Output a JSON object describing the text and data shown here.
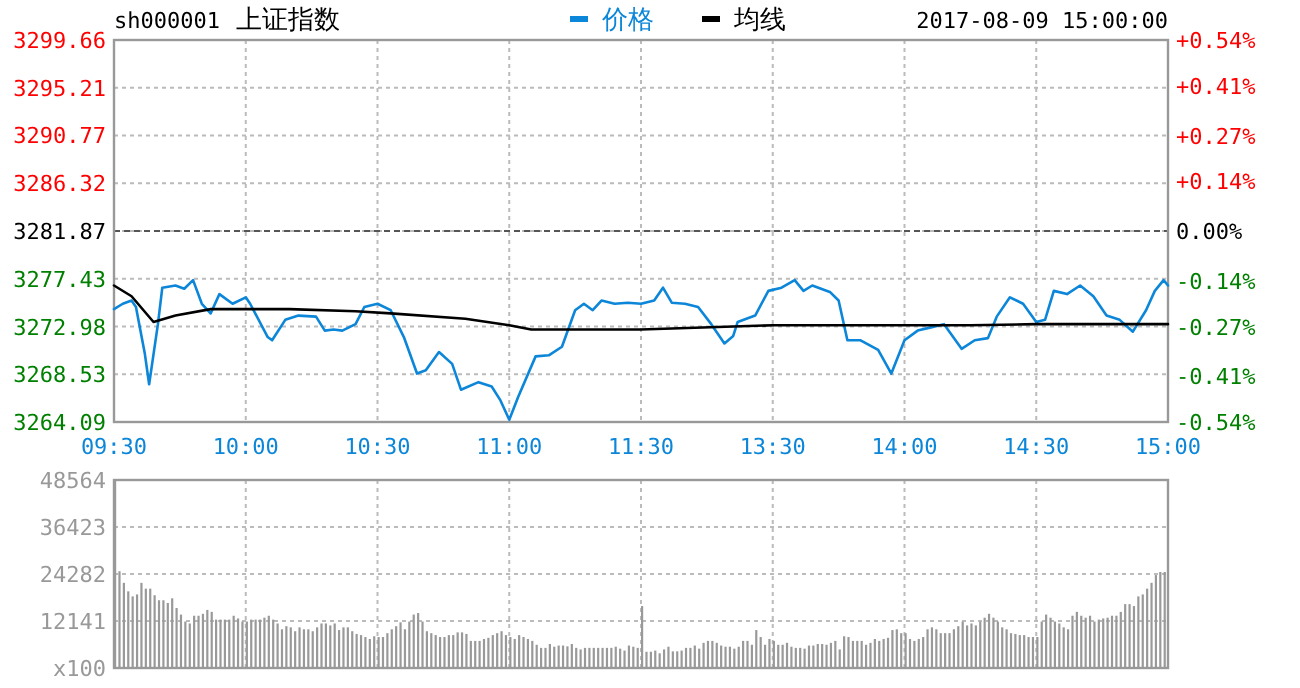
{
  "chart_data": [
    {
      "type": "line",
      "title": "上证指数",
      "annotations": [
        "sh000001",
        "2017-08-09 15:00:00"
      ],
      "legend": "top",
      "grid": true,
      "categories": [
        "09:30",
        null,
        null,
        null,
        null,
        null,
        null,
        null,
        null,
        null,
        null,
        null,
        null,
        null,
        null,
        null,
        null,
        null,
        null,
        null,
        null,
        null,
        null,
        null,
        null,
        null,
        null,
        null,
        null,
        null,
        "10:00",
        null,
        null,
        null,
        null,
        null,
        null,
        null,
        null,
        null,
        null,
        null,
        null,
        null,
        null,
        null,
        null,
        null,
        null,
        null,
        null,
        null,
        null,
        null,
        null,
        null,
        null,
        null,
        null,
        null,
        "10:30",
        null,
        null,
        null,
        null,
        null,
        null,
        null,
        null,
        null,
        null,
        null,
        null,
        null,
        null,
        null,
        null,
        null,
        null,
        null,
        null,
        null,
        null,
        null,
        null,
        null,
        null,
        null,
        null,
        null,
        "11:00",
        null,
        null,
        null,
        null,
        null,
        null,
        null,
        null,
        null,
        null,
        null,
        null,
        null,
        null,
        null,
        null,
        null,
        null,
        null,
        null,
        null,
        null,
        null,
        null,
        null,
        null,
        null,
        null,
        null,
        "11:30",
        null,
        null,
        null,
        null,
        null,
        null,
        null,
        null,
        null,
        null,
        null,
        null,
        null,
        null,
        null,
        null,
        null,
        null,
        null,
        null,
        null,
        null,
        null,
        null,
        null,
        null,
        null,
        null,
        null,
        "13:30",
        null,
        null,
        null,
        null,
        null,
        null,
        null,
        null,
        null,
        null,
        null,
        null,
        null,
        null,
        null,
        null,
        null,
        null,
        null,
        null,
        null,
        null,
        null,
        null,
        null,
        null,
        null,
        null,
        null,
        "14:00",
        null,
        null,
        null,
        null,
        null,
        null,
        null,
        null,
        null,
        null,
        null,
        null,
        null,
        null,
        null,
        null,
        null,
        null,
        null,
        null,
        null,
        null,
        null,
        null,
        null,
        null,
        null,
        null,
        null,
        "14:30",
        null,
        null,
        null,
        null,
        null,
        null,
        null,
        null,
        null,
        null,
        null,
        null,
        null,
        null,
        null,
        null,
        null,
        null,
        null,
        null,
        null,
        null,
        null,
        null,
        null,
        null,
        null,
        null,
        null,
        "15:00"
      ],
      "ylim": [
        3264.09,
        3299.66
      ],
      "yticks": [
        3264.09,
        3268.53,
        3272.98,
        3277.43,
        3281.87,
        3286.32,
        3290.77,
        3295.21,
        3299.66
      ],
      "y2lim": [
        -0.54,
        0.54
      ],
      "y2ticks": [
        {
          "value": -0.54,
          "label": "-0.54%"
        },
        {
          "value": -0.41,
          "label": "-0.41%"
        },
        {
          "value": -0.27,
          "label": "-0.27%"
        },
        {
          "value": -0.14,
          "label": "-0.14%"
        },
        {
          "value": 0,
          "label": "0.00%"
        },
        {
          "value": 0.14,
          "label": "+0.14%"
        },
        {
          "value": 0.27,
          "label": "+0.27%"
        },
        {
          "value": 0.41,
          "label": "+0.41%"
        },
        {
          "value": 0.54,
          "label": "+0.54%"
        }
      ],
      "ref_lines": [
        {
          "axis": "y",
          "value": 3281.87,
          "color": "#555555",
          "line_style": "dashed"
        }
      ],
      "series": [
        {
          "name": "价格",
          "color": "#0c86d8",
          "values": [
            3274.6,
            null,
            3275.1,
            null,
            3275.4,
            3274.8,
            null,
            3270.5,
            3267.6,
            null,
            3273.2,
            3276.6,
            null,
            null,
            3276.8,
            null,
            3276.5,
            null,
            3277.3,
            null,
            3275.1,
            null,
            3274.2,
            null,
            3276.0,
            null,
            null,
            3275.1,
            null,
            null,
            3275.7,
            3275.1,
            null,
            null,
            null,
            3272.0,
            3271.7,
            null,
            null,
            3273.6,
            null,
            null,
            3274.0,
            null,
            null,
            null,
            3273.9,
            null,
            3272.6,
            null,
            3272.7,
            null,
            3272.6,
            null,
            null,
            3273.2,
            null,
            3274.8,
            null,
            null,
            3275.1,
            null,
            null,
            3274.5,
            null,
            null,
            3272.0,
            null,
            null,
            3268.6,
            null,
            3268.9,
            null,
            null,
            3270.6,
            null,
            null,
            3269.5,
            null,
            3267.1,
            null,
            null,
            null,
            3267.8,
            null,
            null,
            3267.4,
            null,
            3266.1,
            null,
            3264.3,
            null,
            3266.4,
            null,
            null,
            null,
            3270.2,
            null,
            null,
            3270.3,
            null,
            null,
            3271.1,
            null,
            null,
            3274.5,
            null,
            3275.1,
            null,
            3274.5,
            null,
            3275.4,
            null,
            null,
            3275.1,
            null,
            null,
            3275.2,
            null,
            null,
            3275.1,
            null,
            null,
            3275.4,
            null,
            3276.6,
            null,
            3275.2,
            null,
            null,
            3275.1,
            null,
            null,
            3274.8,
            null,
            null,
            3273.2,
            null,
            null,
            3271.4,
            null,
            3272.1,
            3273.4,
            null,
            null,
            null,
            3274.0,
            null,
            null,
            3276.3,
            null,
            null,
            3276.6,
            null,
            null,
            3277.3,
            null,
            3276.3,
            null,
            3276.8,
            null,
            null,
            null,
            3276.2,
            null,
            3275.4,
            null,
            3271.7,
            null,
            null,
            3271.7,
            null,
            null,
            null,
            3270.8,
            null,
            null,
            3268.6,
            null,
            null,
            3271.7,
            null,
            null,
            3272.6,
            null,
            null,
            3272.9,
            null,
            null,
            3273.2,
            null,
            null,
            null,
            3270.9,
            null,
            null,
            3271.7,
            null,
            null,
            3271.9,
            null,
            3273.9,
            null,
            null,
            3275.7,
            null,
            null,
            3275.1,
            null,
            null,
            3273.4,
            null,
            3273.6,
            null,
            3276.3,
            null,
            null,
            3276.0,
            null,
            null,
            3276.8,
            null,
            null,
            3275.8,
            null,
            null,
            3274.0,
            null,
            null,
            3273.6,
            null,
            null,
            3272.5,
            null,
            null,
            3274.5,
            null,
            3276.3,
            null,
            3277.3,
            3276.8
          ]
        },
        {
          "name": "均线",
          "color": "#000000",
          "values": [
            3276.8,
            null,
            null,
            null,
            3275.8,
            null,
            null,
            null,
            null,
            3273.4,
            null,
            null,
            null,
            null,
            3274.0,
            null,
            null,
            null,
            null,
            null,
            null,
            null,
            3274.6,
            null,
            null,
            null,
            null,
            null,
            null,
            null,
            null,
            null,
            null,
            null,
            null,
            null,
            null,
            null,
            null,
            null,
            3274.6,
            null,
            null,
            null,
            null,
            null,
            null,
            null,
            null,
            null,
            null,
            null,
            null,
            null,
            null,
            3274.4,
            null,
            null,
            null,
            null,
            null,
            null,
            null,
            3274.2,
            null,
            null,
            null,
            null,
            null,
            null,
            null,
            null,
            null,
            null,
            null,
            null,
            null,
            null,
            null,
            null,
            3273.7,
            null,
            null,
            null,
            null,
            null,
            null,
            null,
            null,
            null,
            3273.1,
            null,
            null,
            null,
            null,
            3272.7,
            null,
            null,
            null,
            null,
            null,
            null,
            null,
            null,
            null,
            null,
            null,
            null,
            null,
            null,
            null,
            null,
            null,
            null,
            null,
            null,
            null,
            null,
            null,
            null,
            3272.7,
            null,
            null,
            null,
            null,
            null,
            null,
            null,
            null,
            null,
            null,
            null,
            null,
            null,
            null,
            null,
            null,
            null,
            null,
            null,
            null,
            null,
            null,
            null,
            null,
            null,
            null,
            null,
            null,
            null,
            3273.1,
            null,
            null,
            null,
            null,
            null,
            null,
            null,
            null,
            null,
            null,
            null,
            null,
            null,
            null,
            null,
            null,
            null,
            null,
            null,
            null,
            null,
            null,
            null,
            null,
            null,
            null,
            null,
            null,
            null,
            3273.1,
            null,
            null,
            null,
            null,
            null,
            null,
            null,
            null,
            null,
            null,
            null,
            null,
            null,
            null,
            3273.1,
            null,
            null,
            null,
            null,
            null,
            null,
            null,
            null,
            null,
            null,
            null,
            null,
            null,
            null,
            3273.2,
            null,
            null,
            null,
            null,
            null,
            null,
            null,
            null,
            null,
            null,
            null,
            null,
            null,
            null,
            3273.2,
            null,
            null,
            null,
            null,
            null,
            null,
            null,
            null,
            null,
            null,
            null,
            null,
            null,
            null,
            3273.2
          ]
        }
      ]
    },
    {
      "type": "bar",
      "grid": true,
      "tick_labels": "y",
      "color": "#999999",
      "categories": [
        null,
        null,
        null,
        null,
        null,
        null,
        null,
        null,
        null,
        null,
        null,
        null,
        null,
        null,
        null,
        null,
        null,
        null,
        null,
        null,
        null,
        null,
        null,
        null,
        null,
        null,
        null,
        null,
        null,
        null,
        null,
        null,
        null,
        null,
        null,
        null,
        null,
        null,
        null,
        null,
        null,
        null,
        null,
        null,
        null,
        null,
        null,
        null,
        null,
        null,
        null,
        null,
        null,
        null,
        null,
        null,
        null,
        null,
        null,
        null,
        null,
        null,
        null,
        null,
        null,
        null,
        null,
        null,
        null,
        null,
        null,
        null,
        null,
        null,
        null,
        null,
        null,
        null,
        null,
        null,
        null,
        null,
        null,
        null,
        null,
        null,
        null,
        null,
        null,
        null,
        null,
        null,
        null,
        null,
        null,
        null,
        null,
        null,
        null,
        null,
        null,
        null,
        null,
        null,
        null,
        null,
        null,
        null,
        null,
        null,
        null,
        null,
        null,
        null,
        null,
        null,
        null,
        null,
        null,
        null,
        null,
        null,
        null,
        null,
        null,
        null,
        null,
        null,
        null,
        null,
        null,
        null,
        null,
        null,
        null,
        null,
        null,
        null,
        null,
        null,
        null,
        null,
        null,
        null,
        null,
        null,
        null,
        null,
        null,
        null,
        null,
        null,
        null,
        null,
        null,
        null,
        null,
        null,
        null,
        null,
        null,
        null,
        null,
        null,
        null,
        null,
        null,
        null,
        null,
        null,
        null,
        null,
        null,
        null,
        null,
        null,
        null,
        null,
        null,
        null,
        null,
        null,
        null,
        null,
        null,
        null,
        null,
        null,
        null,
        null,
        null,
        null,
        null,
        null,
        null,
        null,
        null,
        null,
        null,
        null,
        null,
        null,
        null,
        null,
        null,
        null,
        null,
        null,
        null,
        null,
        null,
        null,
        null,
        null,
        null,
        null,
        null,
        null,
        null,
        null,
        null,
        null,
        null,
        null,
        null,
        null,
        null,
        null,
        null,
        null,
        null,
        null,
        null,
        null,
        null,
        null,
        null,
        null,
        null,
        null,
        null
      ],
      "ylim": [
        0,
        48564
      ],
      "yticks": [
        {
          "value": 0,
          "label": "x100"
        },
        12141,
        24282,
        36423,
        48564
      ],
      "values": [
        48500,
        25000,
        22000,
        19800,
        18500,
        19000,
        22000,
        20500,
        20500,
        18800,
        17500,
        17500,
        16800,
        18000,
        15500,
        13800,
        12000,
        11500,
        13500,
        13500,
        14000,
        15000,
        14500,
        12500,
        12500,
        12500,
        12500,
        13500,
        12800,
        12000,
        12000,
        12500,
        12500,
        12500,
        13000,
        13500,
        12500,
        11500,
        10000,
        10800,
        10500,
        9500,
        10500,
        10000,
        10000,
        9500,
        10500,
        11500,
        11500,
        11000,
        11500,
        9800,
        10500,
        10500,
        9500,
        8800,
        8500,
        8000,
        7500,
        8200,
        8000,
        8000,
        9000,
        10000,
        10800,
        11800,
        10000,
        12000,
        13800,
        14200,
        12000,
        9500,
        9000,
        8500,
        8000,
        8000,
        8500,
        8500,
        9200,
        9200,
        8800,
        7000,
        7000,
        7000,
        7500,
        7800,
        8500,
        9000,
        9500,
        8500,
        8000,
        7500,
        8500,
        8000,
        7500,
        7000,
        6000,
        5200,
        5200,
        6200,
        5500,
        5800,
        5800,
        5600,
        6200,
        5200,
        4800,
        5200,
        5200,
        5200,
        5200,
        5200,
        5200,
        5200,
        5500,
        5000,
        4500,
        5800,
        5500,
        5200,
        16000,
        4200,
        4200,
        4500,
        3800,
        4800,
        5500,
        4300,
        4300,
        4500,
        5200,
        5200,
        5800,
        5000,
        6500,
        7000,
        7000,
        6500,
        5800,
        5500,
        5500,
        5000,
        5500,
        7000,
        7000,
        6000,
        9800,
        8000,
        6000,
        7500,
        7000,
        6000,
        6000,
        6500,
        5500,
        5200,
        5200,
        5000,
        5800,
        5800,
        6200,
        6200,
        6000,
        6500,
        7000,
        4800,
        8200,
        8000,
        7000,
        7000,
        7000,
        6000,
        6500,
        7500,
        7000,
        7500,
        7800,
        9800,
        10000,
        9000,
        9000,
        7500,
        7000,
        7500,
        8000,
        10000,
        10500,
        10000,
        9000,
        9000,
        9000,
        10000,
        10800,
        12000,
        11000,
        11500,
        11000,
        12000,
        13000,
        14000,
        13000,
        12000,
        10500,
        10000,
        9000,
        8800,
        8500,
        8500,
        8000,
        8000,
        8000,
        12000,
        13800,
        13000,
        12000,
        11500,
        10500,
        10000,
        13500,
        14500,
        13500,
        13000,
        13500,
        12000,
        12500,
        12800,
        13000,
        13500,
        13500,
        14500,
        16500,
        16500,
        16000,
        18500,
        19000,
        20500,
        22000,
        24000,
        24800,
        24800,
        null
      ]
    }
  ]
}
